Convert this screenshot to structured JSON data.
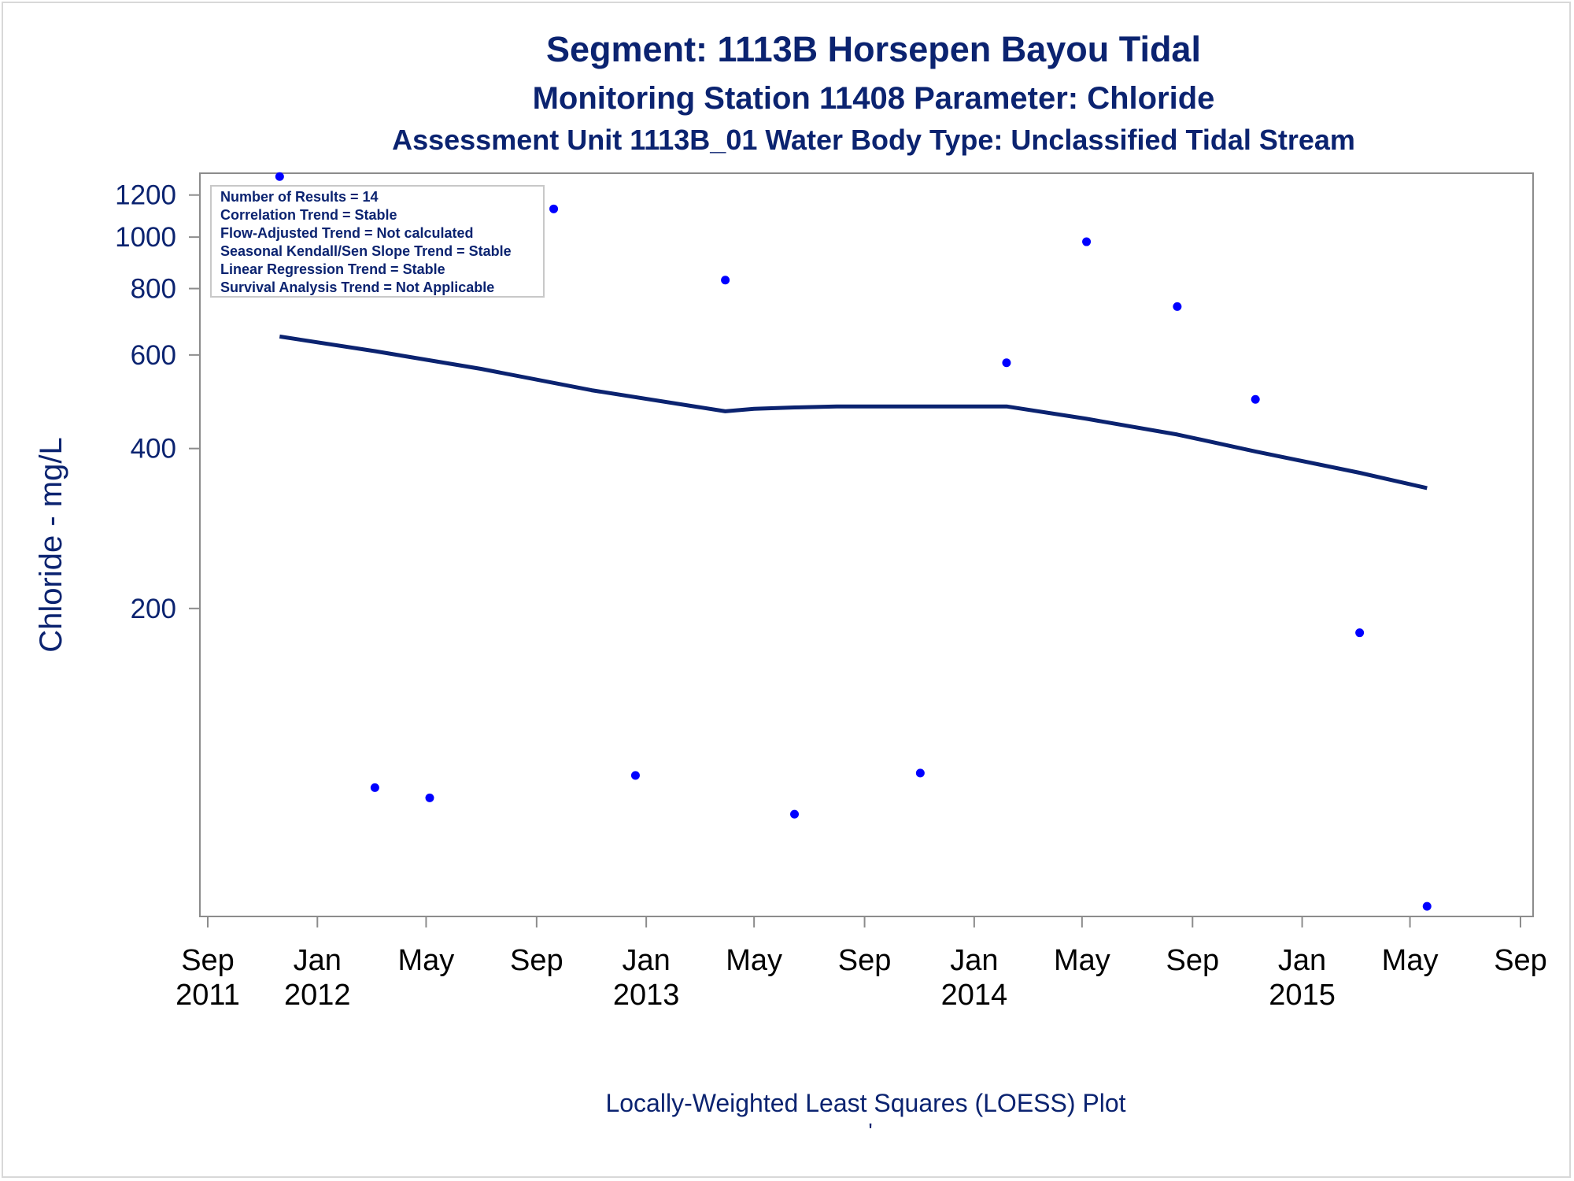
{
  "titles": {
    "line1": "Segment: 1113B  Horsepen Bayou Tidal",
    "line2": "Monitoring Station 11408 Parameter: Chloride",
    "line3": "Assessment Unit 1113B_01   Water Body Type: Unclassified Tidal Stream"
  },
  "stats_box": [
    "Number of Results = 14",
    "Correlation Trend = Stable",
    "Flow-Adjusted Trend = Not calculated",
    "Seasonal Kendall/Sen Slope Trend = Stable",
    "Linear Regression Trend = Stable",
    "Survival Analysis Trend = Not Applicable"
  ],
  "footer": "Locally-Weighted Least Squares (LOESS) Plot",
  "footer_mark": "'",
  "colors": {
    "text": "#0b2370",
    "points": "#0000ff",
    "loess": "#0b2370",
    "axis": "#8c8c8c"
  },
  "chart_data": {
    "type": "scatter",
    "ylabel": "Chloride - mg/L",
    "y_scale": "log",
    "ylim": [
      53,
      1310
    ],
    "yticks": [
      200,
      400,
      600,
      800,
      1000,
      1200
    ],
    "xlim": [
      "2011-09-01",
      "2015-09-01"
    ],
    "xticks": [
      {
        "date": "2011-09-01",
        "month": "Sep",
        "year": "2011"
      },
      {
        "date": "2012-01-01",
        "month": "Jan",
        "year": "2012"
      },
      {
        "date": "2012-05-01",
        "month": "May",
        "year": ""
      },
      {
        "date": "2012-09-01",
        "month": "Sep",
        "year": ""
      },
      {
        "date": "2013-01-01",
        "month": "Jan",
        "year": "2013"
      },
      {
        "date": "2013-05-01",
        "month": "May",
        "year": ""
      },
      {
        "date": "2013-09-01",
        "month": "Sep",
        "year": ""
      },
      {
        "date": "2014-01-01",
        "month": "Jan",
        "year": "2014"
      },
      {
        "date": "2014-05-01",
        "month": "May",
        "year": ""
      },
      {
        "date": "2014-09-01",
        "month": "Sep",
        "year": ""
      },
      {
        "date": "2015-01-01",
        "month": "Jan",
        "year": "2015"
      },
      {
        "date": "2015-05-01",
        "month": "May",
        "year": ""
      },
      {
        "date": "2015-09-01",
        "month": "Sep",
        "year": ""
      }
    ],
    "points": [
      {
        "x": "2011-11-20",
        "y": 1300
      },
      {
        "x": "2012-03-05",
        "y": 92
      },
      {
        "x": "2012-05-05",
        "y": 88
      },
      {
        "x": "2012-09-20",
        "y": 1130
      },
      {
        "x": "2012-12-20",
        "y": 97
      },
      {
        "x": "2013-03-30",
        "y": 830
      },
      {
        "x": "2013-06-15",
        "y": 82
      },
      {
        "x": "2013-11-02",
        "y": 98
      },
      {
        "x": "2014-02-06",
        "y": 580
      },
      {
        "x": "2014-05-06",
        "y": 980
      },
      {
        "x": "2014-08-15",
        "y": 740
      },
      {
        "x": "2014-11-10",
        "y": 495
      },
      {
        "x": "2015-03-06",
        "y": 180
      },
      {
        "x": "2015-05-20",
        "y": 55
      }
    ],
    "loess": [
      {
        "x": "2011-11-20",
        "y": 650
      },
      {
        "x": "2012-03-05",
        "y": 610
      },
      {
        "x": "2012-07-01",
        "y": 565
      },
      {
        "x": "2012-11-01",
        "y": 515
      },
      {
        "x": "2013-03-30",
        "y": 470
      },
      {
        "x": "2013-05-01",
        "y": 475
      },
      {
        "x": "2013-06-15",
        "y": 478
      },
      {
        "x": "2013-08-01",
        "y": 480
      },
      {
        "x": "2014-02-06",
        "y": 480
      },
      {
        "x": "2014-05-06",
        "y": 455
      },
      {
        "x": "2014-08-15",
        "y": 425
      },
      {
        "x": "2014-11-10",
        "y": 395
      },
      {
        "x": "2015-03-06",
        "y": 360
      },
      {
        "x": "2015-05-20",
        "y": 337
      }
    ]
  }
}
